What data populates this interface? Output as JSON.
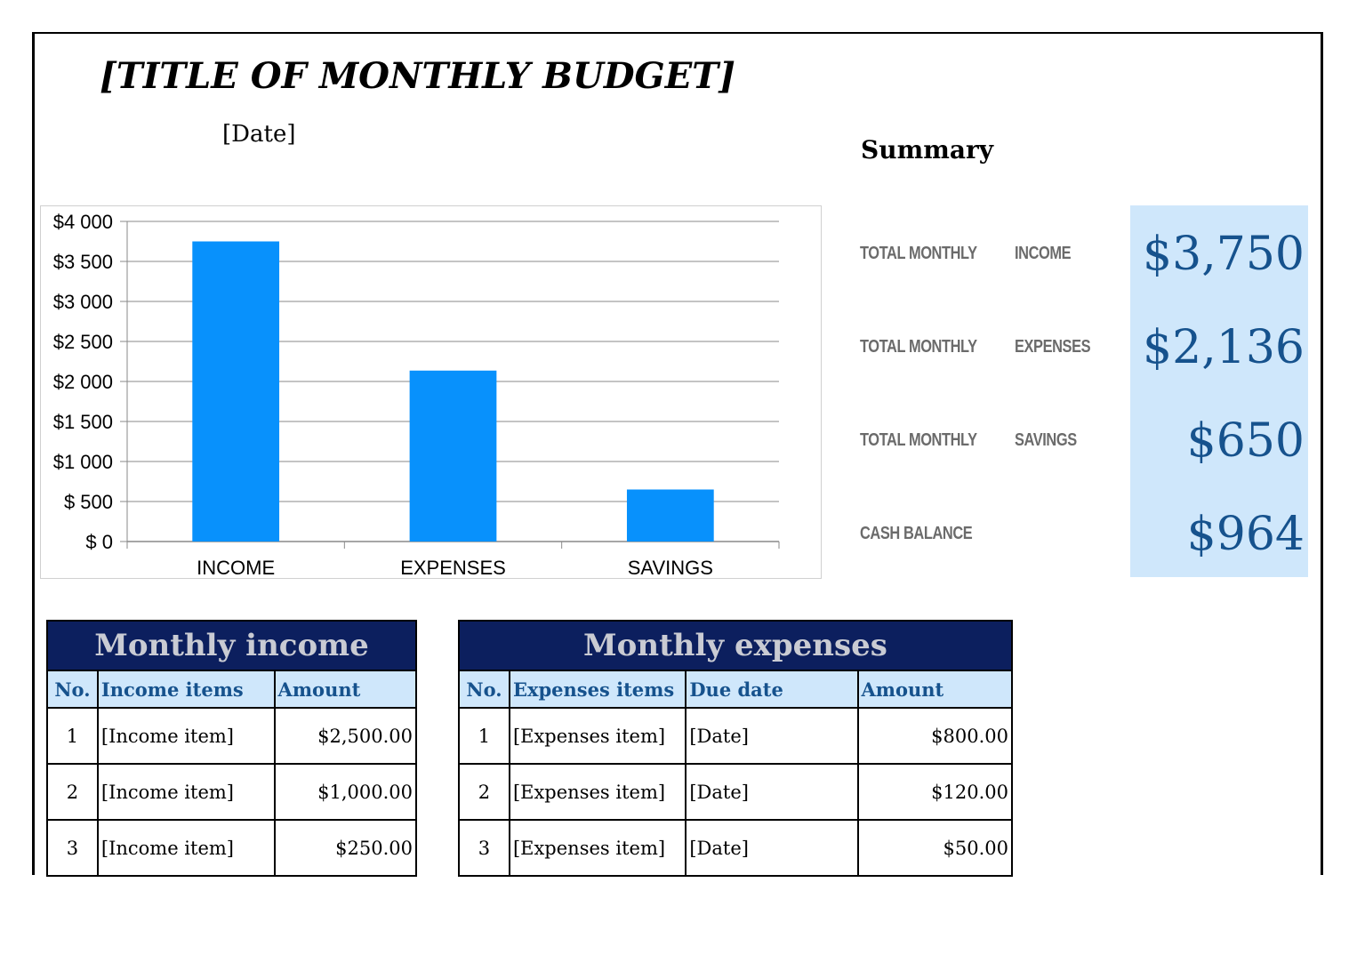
{
  "header": {
    "title": "[TITLE OF MONTHLY BUDGET]",
    "date": "[Date]"
  },
  "summary": {
    "title": "Summary",
    "rows": [
      {
        "label1": "TOTAL MONTHLY",
        "label2": "INCOME",
        "value": "$3,750"
      },
      {
        "label1": "TOTAL MONTHLY",
        "label2": "EXPENSES",
        "value": "$2,136"
      },
      {
        "label1": "TOTAL MONTHLY",
        "label2": "SAVINGS",
        "value": "$650"
      },
      {
        "label1": "CASH BALANCE",
        "label2": "",
        "value": "$964"
      }
    ]
  },
  "chart_data": {
    "type": "bar",
    "categories": [
      "INCOME",
      "EXPENSES",
      "SAVINGS"
    ],
    "values": [
      3750,
      2136,
      650
    ],
    "ylim": [
      0,
      4000
    ],
    "yticks": [
      0,
      500,
      1000,
      1500,
      2000,
      2500,
      3000,
      3500,
      4000
    ],
    "ytick_labels": [
      "$ 0",
      "$ 500",
      "$1 000",
      "$1 500",
      "$2 000",
      "$2 500",
      "$3 000",
      "$3 500",
      "$4 000"
    ],
    "grid": true,
    "bar_color": "#0891fc",
    "title": "",
    "xlabel": "",
    "ylabel": ""
  },
  "income_table": {
    "title": "Monthly income",
    "columns": [
      "No.",
      "Income items",
      "Amount"
    ],
    "rows": [
      {
        "no": "1",
        "item": "[Income item]",
        "amount": "$2,500.00"
      },
      {
        "no": "2",
        "item": "[Income item]",
        "amount": "$1,000.00"
      },
      {
        "no": "3",
        "item": "[Income item]",
        "amount": "$250.00"
      }
    ]
  },
  "expenses_table": {
    "title": "Monthly expenses",
    "columns": [
      "No.",
      "Expenses items",
      "Due date",
      "Amount"
    ],
    "rows": [
      {
        "no": "1",
        "item": "[Expenses item]",
        "due": "[Date]",
        "amount": "$800.00"
      },
      {
        "no": "2",
        "item": "[Expenses item]",
        "due": "[Date]",
        "amount": "$120.00"
      },
      {
        "no": "3",
        "item": "[Expenses item]",
        "due": "[Date]",
        "amount": "$50.00"
      }
    ]
  },
  "colors": {
    "table_header_bg": "#0c1f5e",
    "column_header_bg": "#cfe7fb",
    "summary_value": "#16528d"
  }
}
